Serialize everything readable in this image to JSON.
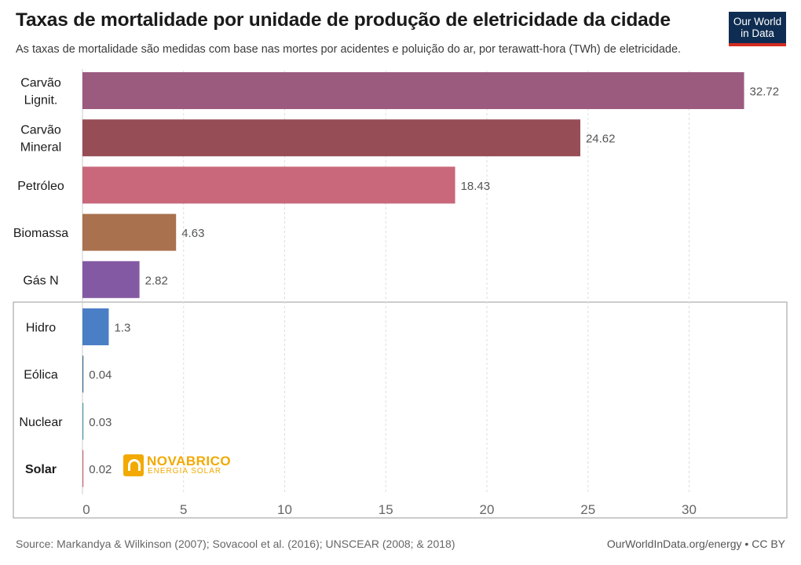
{
  "header": {
    "title": "Taxas de mortalidade por unidade de produção de eletricidade da cidade",
    "subtitle": "As taxas de mortalidade são medidas com base nas mortes por acidentes e poluição do ar, por terawatt-hora (TWh) de eletricidade.",
    "logo_line1": "Our World",
    "logo_line2": "in Data"
  },
  "watermark": {
    "name": "NOVABRICO",
    "tagline": "ENERGIA SOLAR"
  },
  "footer": {
    "source": "Source: Markandya & Wilkinson (2007); Sovacool et al. (2016); UNSCEAR (2008; & 2018)",
    "credit": "OurWorldInData.org/energy • CC BY"
  },
  "chart_data": {
    "type": "bar",
    "orientation": "horizontal",
    "title": "Taxas de mortalidade por unidade de produção de eletricidade da cidade",
    "xlabel": "",
    "ylabel": "",
    "xlim": [
      0,
      33
    ],
    "xticks": [
      0,
      5,
      10,
      15,
      20,
      25,
      30
    ],
    "grid": true,
    "categories": [
      {
        "label": [
          "Carvão",
          "Lignit."
        ],
        "value": 32.72,
        "value_label": "32.72",
        "color": "#9b5b7f",
        "bold": false
      },
      {
        "label": [
          "Carvão",
          "Mineral"
        ],
        "value": 24.62,
        "value_label": "24.62",
        "color": "#974d56",
        "bold": false
      },
      {
        "label": [
          "Petróleo"
        ],
        "value": 18.43,
        "value_label": "18.43",
        "color": "#c8687a",
        "bold": false
      },
      {
        "label": [
          "Biomassa"
        ],
        "value": 4.63,
        "value_label": "4.63",
        "color": "#a9714d",
        "bold": false
      },
      {
        "label": [
          "Gás N"
        ],
        "value": 2.82,
        "value_label": "2.82",
        "color": "#8459a3",
        "bold": false
      },
      {
        "label": [
          "Hidro"
        ],
        "value": 1.3,
        "value_label": "1.3",
        "color": "#4a7fc5",
        "bold": false
      },
      {
        "label": [
          "Eólica"
        ],
        "value": 0.04,
        "value_label": "0.04",
        "color": "#3d6a8e",
        "bold": false
      },
      {
        "label": [
          "Nuclear"
        ],
        "value": 0.03,
        "value_label": "0.03",
        "color": "#4d9aa6",
        "bold": false
      },
      {
        "label": [
          "Solar"
        ],
        "value": 0.02,
        "value_label": "0.02",
        "color": "#c46b6b",
        "bold": true
      }
    ],
    "highlight_box_categories": [
      "Hidro",
      "Eólica",
      "Nuclear",
      "Solar"
    ]
  }
}
